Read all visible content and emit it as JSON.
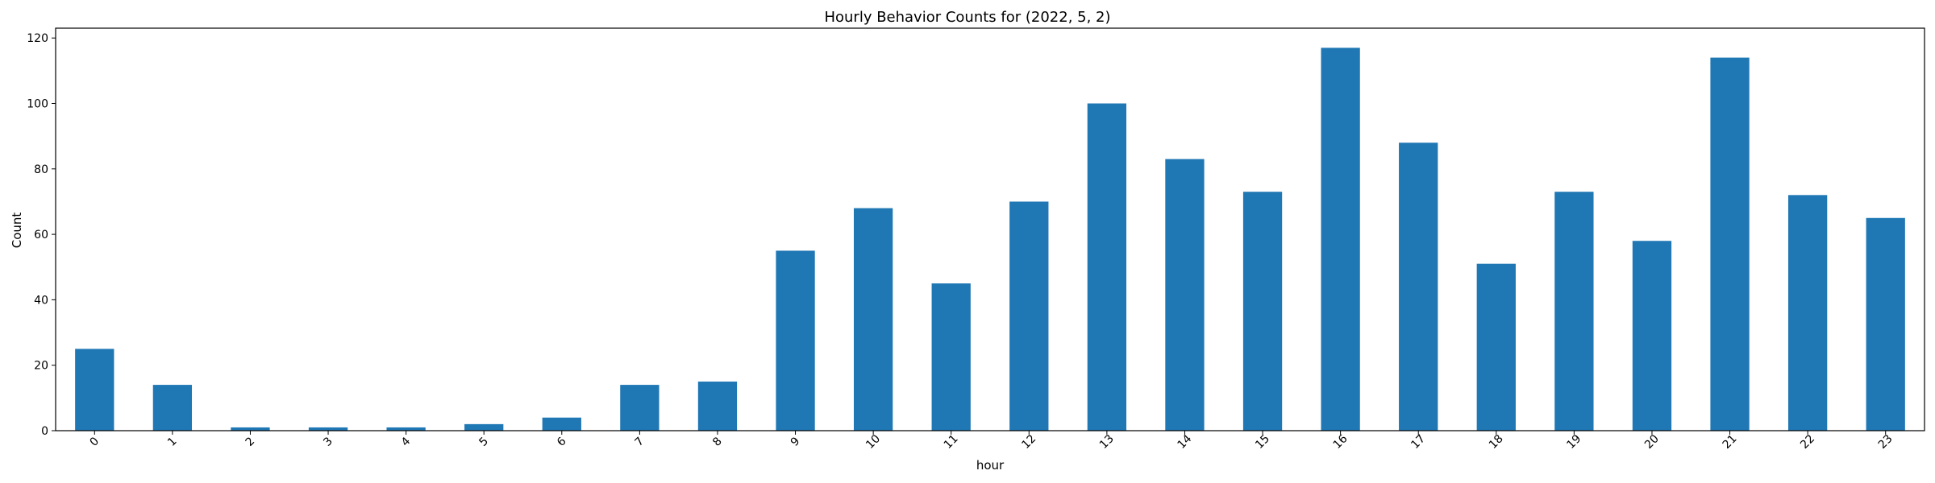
{
  "chart_data": {
    "type": "bar",
    "title": "Hourly Behavior Counts for (2022, 5, 2)",
    "xlabel": "hour",
    "ylabel": "Count",
    "categories": [
      "0",
      "1",
      "2",
      "3",
      "4",
      "5",
      "6",
      "7",
      "8",
      "9",
      "10",
      "11",
      "12",
      "13",
      "14",
      "15",
      "16",
      "17",
      "18",
      "19",
      "20",
      "21",
      "22",
      "23"
    ],
    "values": [
      25,
      14,
      1,
      1,
      1,
      2,
      4,
      14,
      15,
      55,
      68,
      45,
      70,
      100,
      83,
      73,
      117,
      88,
      51,
      73,
      58,
      114,
      72,
      65
    ],
    "ylim": [
      0,
      123
    ],
    "yticks": [
      0,
      20,
      40,
      60,
      80,
      100,
      120
    ],
    "grid": false,
    "bar_color": "#1f77b4",
    "x_tick_rotation": 45
  }
}
